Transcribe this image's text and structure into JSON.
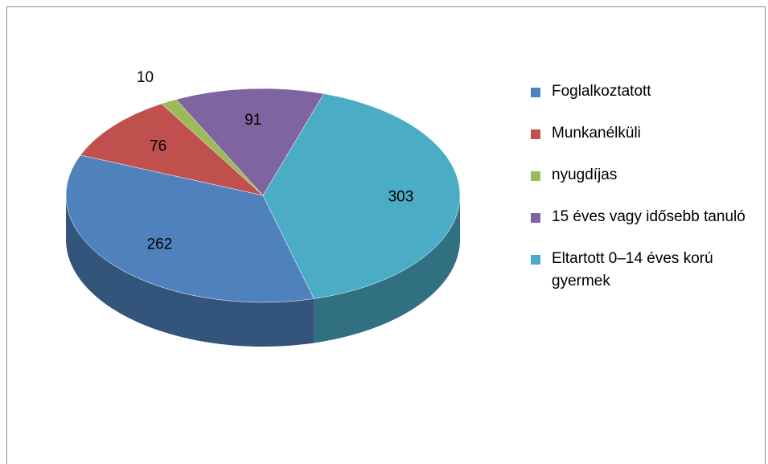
{
  "chart_data": {
    "type": "pie3d",
    "categories": [
      "Foglalkoztatott",
      "Munkanélküli",
      "nyugdíjas",
      "15 éves vagy idősebb tanuló",
      "Eltartott 0–14 éves korú gyermek"
    ],
    "values": [
      262,
      76,
      10,
      91,
      303
    ],
    "colors": [
      "#4f81bd",
      "#c0504d",
      "#9bbb59",
      "#8064a2",
      "#4bacc6"
    ],
    "legend": "right"
  }
}
